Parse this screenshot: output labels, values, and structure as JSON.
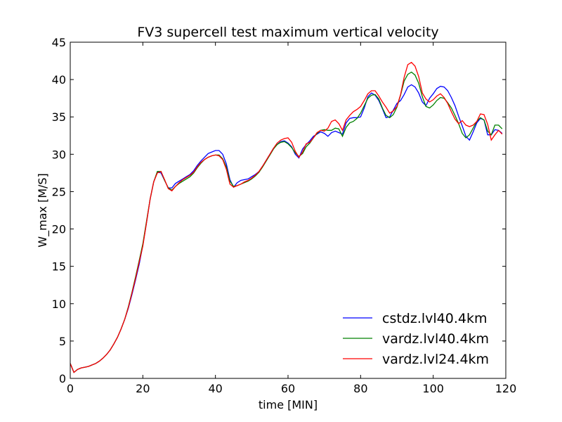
{
  "chart_data": {
    "type": "line",
    "title": "FV3 supercell test maximum vertical velocity",
    "xlabel": "time [MIN]",
    "ylabel": "W_max [M/S]",
    "xlim": [
      0,
      120
    ],
    "ylim": [
      0,
      45
    ],
    "xticks": [
      0,
      20,
      40,
      60,
      80,
      100,
      120
    ],
    "yticks": [
      0,
      5,
      10,
      15,
      20,
      25,
      30,
      35,
      40,
      45
    ],
    "grid": false,
    "legend_position": "bottom-right",
    "series": [
      {
        "name": "cstdz.lvl40.4km",
        "color": "#0000ff",
        "x": [
          0,
          1,
          2,
          3,
          4,
          5,
          6,
          7,
          8,
          9,
          10,
          11,
          12,
          13,
          14,
          15,
          16,
          17,
          18,
          19,
          20,
          21,
          22,
          23,
          24,
          25,
          26,
          27,
          28,
          29,
          30,
          31,
          32,
          33,
          34,
          35,
          36,
          37,
          38,
          39,
          40,
          41,
          42,
          43,
          44,
          45,
          46,
          47,
          48,
          49,
          50,
          51,
          52,
          53,
          54,
          55,
          56,
          57,
          58,
          59,
          60,
          61,
          62,
          63,
          64,
          65,
          66,
          67,
          68,
          69,
          70,
          71,
          72,
          73,
          74,
          75,
          76,
          77,
          78,
          79,
          80,
          81,
          82,
          83,
          84,
          85,
          86,
          87,
          88,
          89,
          90,
          91,
          92,
          93,
          94,
          95,
          96,
          97,
          98,
          99,
          100,
          101,
          102,
          103,
          104,
          105,
          106,
          107,
          108,
          109,
          110,
          111,
          112,
          113,
          114,
          115,
          116,
          117,
          118,
          119
        ],
        "values": [
          2.0,
          0.8,
          1.2,
          1.4,
          1.5,
          1.6,
          1.8,
          2.0,
          2.3,
          2.7,
          3.2,
          3.8,
          4.6,
          5.5,
          6.6,
          7.9,
          9.4,
          11.2,
          13.2,
          15.3,
          17.8,
          20.8,
          24.0,
          26.3,
          27.6,
          27.5,
          26.5,
          25.5,
          25.5,
          26.1,
          26.4,
          26.7,
          27.0,
          27.3,
          27.8,
          28.5,
          29.1,
          29.6,
          30.1,
          30.3,
          30.5,
          30.5,
          30.0,
          28.7,
          26.6,
          25.6,
          26.2,
          26.5,
          26.6,
          26.7,
          27.0,
          27.3,
          27.7,
          28.4,
          29.2,
          30.0,
          30.8,
          31.3,
          31.7,
          31.8,
          31.5,
          31.0,
          30.0,
          29.5,
          30.7,
          31.3,
          31.8,
          32.4,
          32.7,
          33.0,
          32.8,
          32.4,
          32.9,
          33.1,
          32.9,
          32.7,
          34.2,
          34.8,
          34.9,
          34.9,
          35.0,
          36.2,
          37.7,
          38.2,
          37.9,
          37.2,
          36.1,
          34.9,
          35.0,
          35.9,
          36.8,
          37.2,
          38.0,
          39.0,
          39.3,
          39.0,
          38.2,
          37.0,
          36.5,
          37.5,
          38.1,
          38.8,
          39.1,
          39.0,
          38.5,
          37.6,
          36.5,
          35.1,
          33.8,
          32.4,
          31.9,
          33.0,
          34.2,
          34.8,
          34.6,
          32.6,
          32.6,
          33.3,
          33.2,
          32.8
        ]
      },
      {
        "name": "vardz.lvl40.4km",
        "color": "#008000",
        "x": [
          0,
          1,
          2,
          3,
          4,
          5,
          6,
          7,
          8,
          9,
          10,
          11,
          12,
          13,
          14,
          15,
          16,
          17,
          18,
          19,
          20,
          21,
          22,
          23,
          24,
          25,
          26,
          27,
          28,
          29,
          30,
          31,
          32,
          33,
          34,
          35,
          36,
          37,
          38,
          39,
          40,
          41,
          42,
          43,
          44,
          45,
          46,
          47,
          48,
          49,
          50,
          51,
          52,
          53,
          54,
          55,
          56,
          57,
          58,
          59,
          60,
          61,
          62,
          63,
          64,
          65,
          66,
          67,
          68,
          69,
          70,
          71,
          72,
          73,
          74,
          75,
          76,
          77,
          78,
          79,
          80,
          81,
          82,
          83,
          84,
          85,
          86,
          87,
          88,
          89,
          90,
          91,
          92,
          93,
          94,
          95,
          96,
          97,
          98,
          99,
          100,
          101,
          102,
          103,
          104,
          105,
          106,
          107,
          108,
          109,
          110,
          111,
          112,
          113,
          114,
          115,
          116,
          117,
          118,
          119
        ],
        "values": [
          2.0,
          0.8,
          1.2,
          1.4,
          1.5,
          1.6,
          1.8,
          2.0,
          2.3,
          2.7,
          3.2,
          3.8,
          4.6,
          5.5,
          6.6,
          7.9,
          9.6,
          11.5,
          13.6,
          15.8,
          18.0,
          21.0,
          24.0,
          26.3,
          27.7,
          27.7,
          26.5,
          25.5,
          25.2,
          25.7,
          26.1,
          26.4,
          26.7,
          27.0,
          27.5,
          28.2,
          28.8,
          29.3,
          29.6,
          29.8,
          29.9,
          29.9,
          29.4,
          28.3,
          26.4,
          25.7,
          25.8,
          26.0,
          26.2,
          26.4,
          26.7,
          27.1,
          27.6,
          28.3,
          29.1,
          29.9,
          30.7,
          31.3,
          31.6,
          31.7,
          31.4,
          30.9,
          30.2,
          29.7,
          30.1,
          31.0,
          31.5,
          32.2,
          32.8,
          33.2,
          33.3,
          33.2,
          33.2,
          33.5,
          33.4,
          32.4,
          33.6,
          34.2,
          34.4,
          34.8,
          35.5,
          36.5,
          37.5,
          37.9,
          38.0,
          37.4,
          36.2,
          35.2,
          34.9,
          35.3,
          36.3,
          37.9,
          39.8,
          40.7,
          41.0,
          40.6,
          39.5,
          37.7,
          36.4,
          36.2,
          36.6,
          37.2,
          37.6,
          37.5,
          36.9,
          36.2,
          35.2,
          34.1,
          32.8,
          32.2,
          32.6,
          33.5,
          34.4,
          34.9,
          34.6,
          33.1,
          32.6,
          33.9,
          33.9,
          33.4
        ]
      },
      {
        "name": "vardz.lvl24.4km",
        "color": "#ff0000",
        "x": [
          0,
          1,
          2,
          3,
          4,
          5,
          6,
          7,
          8,
          9,
          10,
          11,
          12,
          13,
          14,
          15,
          16,
          17,
          18,
          19,
          20,
          21,
          22,
          23,
          24,
          25,
          26,
          27,
          28,
          29,
          30,
          31,
          32,
          33,
          34,
          35,
          36,
          37,
          38,
          39,
          40,
          41,
          42,
          43,
          44,
          45,
          46,
          47,
          48,
          49,
          50,
          51,
          52,
          53,
          54,
          55,
          56,
          57,
          58,
          59,
          60,
          61,
          62,
          63,
          64,
          65,
          66,
          67,
          68,
          69,
          70,
          71,
          72,
          73,
          74,
          75,
          76,
          77,
          78,
          79,
          80,
          81,
          82,
          83,
          84,
          85,
          86,
          87,
          88,
          89,
          90,
          91,
          92,
          93,
          94,
          95,
          96,
          97,
          98,
          99,
          100,
          101,
          102,
          103,
          104,
          105,
          106,
          107,
          108,
          109,
          110,
          111,
          112,
          113,
          114,
          115,
          116,
          117,
          118,
          119
        ],
        "values": [
          2.0,
          0.8,
          1.2,
          1.4,
          1.5,
          1.6,
          1.8,
          2.0,
          2.3,
          2.7,
          3.2,
          3.8,
          4.6,
          5.5,
          6.6,
          7.9,
          9.5,
          11.4,
          13.4,
          15.6,
          17.7,
          20.8,
          24.0,
          26.3,
          27.5,
          27.7,
          26.6,
          25.4,
          25.1,
          25.7,
          26.2,
          26.6,
          26.9,
          27.2,
          27.6,
          28.3,
          28.9,
          29.3,
          29.6,
          29.8,
          29.9,
          29.8,
          29.3,
          28.0,
          26.0,
          25.6,
          25.8,
          26.0,
          26.3,
          26.5,
          26.8,
          27.2,
          27.7,
          28.4,
          29.2,
          30.0,
          30.8,
          31.5,
          31.9,
          32.1,
          32.2,
          31.6,
          30.4,
          29.6,
          30.3,
          31.4,
          31.6,
          32.2,
          32.9,
          33.2,
          33.1,
          33.5,
          34.4,
          34.6,
          34.1,
          33.2,
          34.6,
          35.2,
          35.7,
          36.0,
          36.4,
          37.2,
          38.1,
          38.5,
          38.5,
          37.8,
          37.0,
          36.3,
          35.5,
          35.8,
          36.4,
          38.0,
          40.3,
          42.0,
          42.3,
          41.8,
          40.4,
          38.2,
          37.4,
          37.0,
          37.3,
          37.8,
          38.1,
          37.6,
          36.8,
          35.7,
          34.7,
          34.1,
          34.5,
          33.9,
          33.7,
          33.9,
          34.4,
          35.4,
          35.3,
          34.0,
          31.9,
          32.6,
          33.2,
          32.7
        ]
      }
    ]
  }
}
